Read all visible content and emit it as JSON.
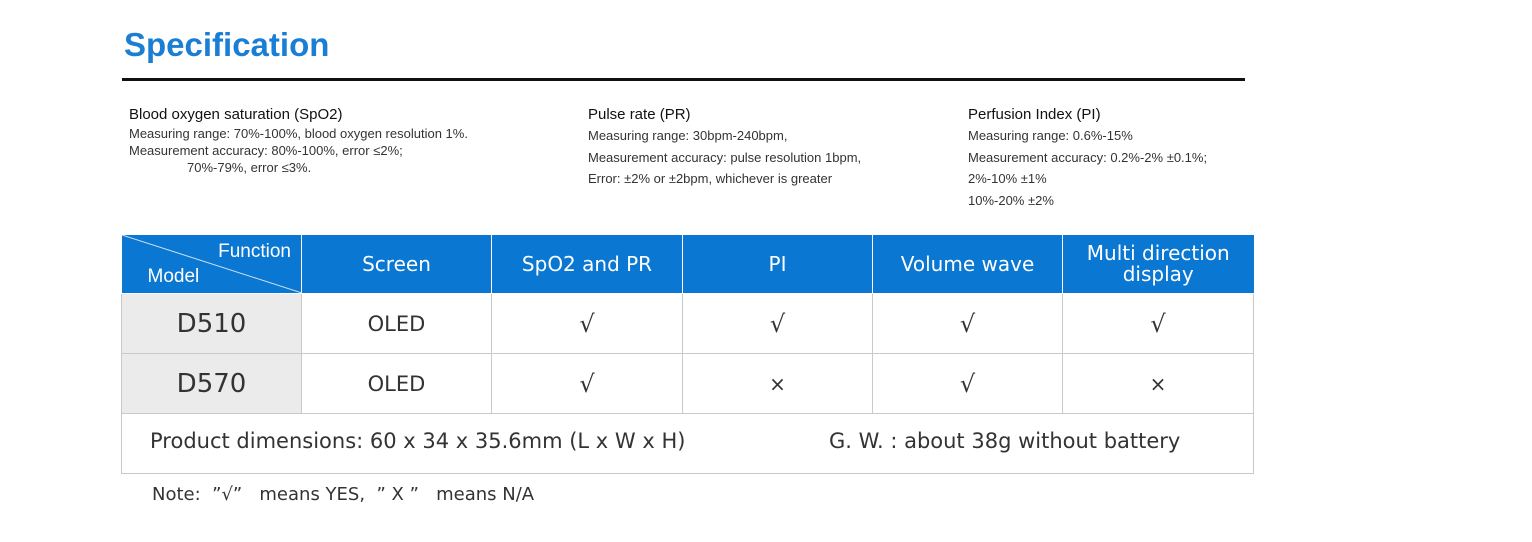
{
  "page": {
    "title": "Specification"
  },
  "specs": [
    {
      "heading": "Blood oxygen saturation (SpO2)",
      "lines": [
        "Measuring range: 70%-100%, blood oxygen resolution 1%.",
        "Measurement accuracy: 80%-100%, error ≤2%;",
        "70%-79%, error ≤3%."
      ]
    },
    {
      "heading": "Pulse rate (PR)",
      "lines": [
        "Measuring range: 30bpm-240bpm,",
        "Measurement accuracy: pulse resolution 1bpm,",
        "Error: ±2% or ±2bpm, whichever is greater"
      ]
    },
    {
      "heading": "Perfusion Index (PI)",
      "lines": [
        "Measuring range: 0.6%-15%",
        "Measurement accuracy: 0.2%-2% ±0.1%;",
        "2%-10% ±1%",
        "10%-20% ±2%"
      ]
    }
  ],
  "table": {
    "corner": {
      "function": "Function",
      "model": "Model"
    },
    "headers": [
      "Screen",
      "SpO2 and PR",
      "PI",
      "Volume wave",
      "Multi direction display"
    ],
    "rows": [
      {
        "model": "D510",
        "cells": [
          "OLED",
          "√",
          "√",
          "√",
          "√"
        ]
      },
      {
        "model": "D570",
        "cells": [
          "OLED",
          "√",
          "×",
          "√",
          "×"
        ]
      }
    ],
    "dimensions": "Product dimensions: 60 x 34 x 35.6mm (L x W x H)",
    "weight": "G. W. : about 38g without battery",
    "header_bg": "#0a77d2",
    "model_bg": "#ebebeb"
  },
  "note": "Note:  ”√”   means YES,  ” X ”   means N/A"
}
